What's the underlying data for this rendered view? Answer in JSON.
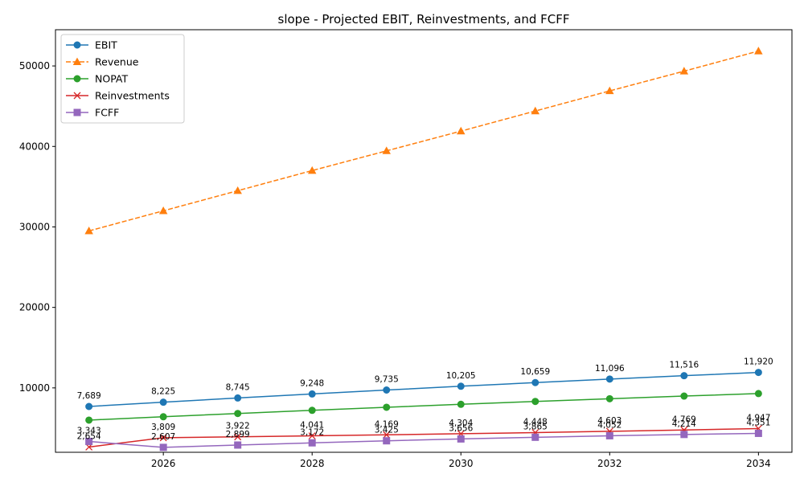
{
  "chart_data": {
    "type": "line",
    "title": "slope - Projected EBIT, Reinvestments, and FCFF",
    "xlabel": "",
    "ylabel": "",
    "x": [
      2025,
      2026,
      2027,
      2028,
      2029,
      2030,
      2031,
      2032,
      2033,
      2034
    ],
    "x_ticks": [
      "2026",
      "2028",
      "2030",
      "2032",
      "2034"
    ],
    "y_ticks": [
      "10000",
      "20000",
      "30000",
      "40000",
      "50000"
    ],
    "xlim": [
      2024.55,
      2034.45
    ],
    "ylim": [
      2000,
      54500
    ],
    "grid": false,
    "legend": "upper left",
    "series": [
      {
        "name": "EBIT",
        "color": "#1f77b4",
        "marker": "circle",
        "linestyle": "solid",
        "values": [
          7689,
          8225,
          8745,
          9248,
          9735,
          10205,
          10659,
          11096,
          11516,
          11920
        ],
        "labels": [
          "7,689",
          "8,225",
          "8,745",
          "9,248",
          "9,735",
          "10,205",
          "10,659",
          "11,096",
          "11,516",
          "11,920"
        ]
      },
      {
        "name": "Revenue",
        "color": "#ff7f0e",
        "marker": "triangle",
        "linestyle": "dashed",
        "values": [
          29500,
          32000,
          34500,
          37000,
          39450,
          41900,
          44400,
          46900,
          49350,
          51850
        ]
      },
      {
        "name": "NOPAT",
        "color": "#2ca02c",
        "marker": "circle",
        "linestyle": "solid",
        "values": [
          5998,
          6415,
          6821,
          7213,
          7593,
          7960,
          8314,
          8655,
          8982,
          9298
        ]
      },
      {
        "name": "Reinvestments",
        "color": "#d62728",
        "marker": "x",
        "linestyle": "solid",
        "values": [
          2654,
          3809,
          3922,
          4041,
          4169,
          4304,
          4448,
          4603,
          4769,
          4947
        ],
        "labels": [
          "2,654",
          "3,809",
          "3,922",
          "4,041",
          "4,169",
          "4,304",
          "4,448",
          "4,603",
          "4,769",
          "4,947"
        ]
      },
      {
        "name": "FCFF",
        "color": "#9467bd",
        "marker": "square",
        "linestyle": "solid",
        "values": [
          3343,
          2607,
          2899,
          3172,
          3425,
          3656,
          3865,
          4052,
          4214,
          4351
        ],
        "labels": [
          "3,343",
          "2,607",
          "2,899",
          "3,172",
          "3,425",
          "3,656",
          "3,865",
          "4,052",
          "4,214",
          "4,351"
        ]
      }
    ]
  }
}
